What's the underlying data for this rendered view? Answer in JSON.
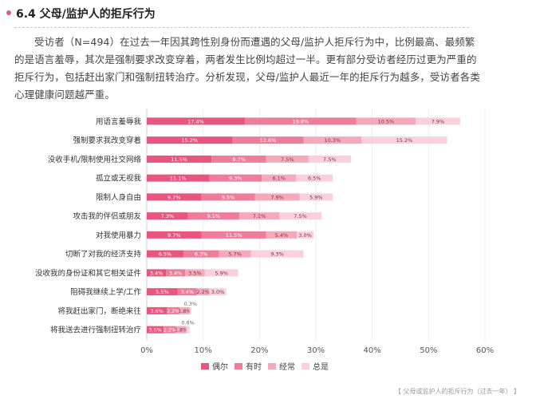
{
  "header": {
    "title": "6.4 父母/监护人的拒斥行为"
  },
  "paragraph": "受访者（N=494）在过去一年因其跨性别身份而遭遇的父母/监护人拒斥行为中，比例最高、最频繁的是语言羞辱，其次是强制要求改变穿着，两者发生比例均超过一半。更有部分受访者经历过更为严重的拒斥行为，包括赶出家门和强制扭转治疗。分析发现，父母/监护人最近一年的拒斥行为越多，受访者各类心理健康问题越严重。",
  "caption": "【 父母或监护人的拒斥行为（过去一年） 】",
  "colors": [
    "#e8567f",
    "#ee7d9c",
    "#f4a9bd",
    "#f9d0dc"
  ],
  "chart_data": {
    "type": "bar",
    "stacked": true,
    "orientation": "horizontal",
    "categories": [
      "用语言羞辱我",
      "强制要求我改变穿着",
      "没收手机/限制使用社交网络",
      "孤立或无视我",
      "限制人身自由",
      "攻击我的伴侣或朋友",
      "对我使用暴力",
      "切断了对我的经济支持",
      "没收我的身份证和其它相关证件",
      "阻碍我继续上学/工作",
      "将我赶出家门，断绝来往",
      "将我送去进行强制扭转治疗"
    ],
    "series": [
      {
        "name": "偶尔",
        "values": [
          17.4,
          15.2,
          11.5,
          11.1,
          9.7,
          7.3,
          9.7,
          6.5,
          3.4,
          5.5,
          3.6,
          3.0
        ]
      },
      {
        "name": "有时",
        "values": [
          19.8,
          12.6,
          9.7,
          9.3,
          9.5,
          9.1,
          11.5,
          6.3,
          3.4,
          3.4,
          2.2,
          2.2
        ]
      },
      {
        "name": "经常",
        "values": [
          10.5,
          10.3,
          7.5,
          6.1,
          7.9,
          7.1,
          5.4,
          5.7,
          3.5,
          2.2,
          1.8,
          1.8
        ]
      },
      {
        "name": "总是",
        "values": [
          7.9,
          15.2,
          7.5,
          6.5,
          5.9,
          7.5,
          3.0,
          9.3,
          5.9,
          3.0,
          0.3,
          0.6
        ]
      }
    ],
    "ticks": [
      "0%",
      "10%",
      "20%",
      "30%",
      "40%",
      "50%",
      "60%"
    ],
    "xlim": [
      0,
      60
    ],
    "legend_position": "bottom",
    "grid": true
  }
}
